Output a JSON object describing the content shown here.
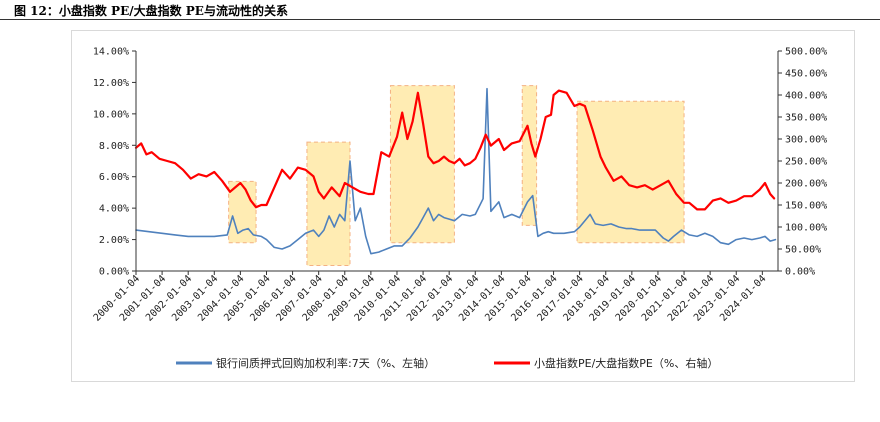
{
  "figure": {
    "title": "图 12：小盘指数 PE/大盘指数 PE与流动性的关系"
  },
  "chart_data": {
    "type": "line",
    "xlabel": "",
    "ylabel_left": "",
    "ylabel_right": "",
    "x_tick_labels": [
      "2000-01-04",
      "2001-01-04",
      "2002-01-04",
      "2003-01-04",
      "2004-01-04",
      "2005-01-04",
      "2006-01-04",
      "2007-01-04",
      "2008-01-04",
      "2009-01-04",
      "2010-01-04",
      "2011-01-04",
      "2012-01-04",
      "2013-01-04",
      "2014-01-04",
      "2015-01-04",
      "2016-01-04",
      "2017-01-04",
      "2018-01-04",
      "2019-01-04",
      "2020-01-04",
      "2021-01-04",
      "2022-01-04",
      "2023-01-04",
      "2024-01-04"
    ],
    "y_left": {
      "ylim": [
        0,
        14
      ],
      "tick_labels": [
        "0.00%",
        "2.00%",
        "4.00%",
        "6.00%",
        "8.00%",
        "10.00%",
        "12.00%",
        "14.00%"
      ]
    },
    "y_right": {
      "ylim": [
        0,
        500
      ],
      "tick_labels": [
        "0.00%",
        "50.00%",
        "100.00%",
        "150.00%",
        "200.00%",
        "250.00%",
        "300.00%",
        "350.00%",
        "400.00%",
        "450.00%",
        "500.00%"
      ]
    },
    "grid": false,
    "legend_position": "bottom",
    "colors": {
      "repo_rate": "#4f81bd",
      "pe_ratio": "#ff0000",
      "highlight_fill": "#ffe699",
      "highlight_border": "#f4b183"
    },
    "series": [
      {
        "name": "银行间质押式回购加权利率:7天（%、左轴）",
        "axis": "left",
        "x": [
          2000.0,
          2000.5,
          2001.0,
          2001.5,
          2002.0,
          2002.5,
          2003.0,
          2003.5,
          2003.7,
          2003.9,
          2004.1,
          2004.3,
          2004.5,
          2004.8,
          2005.0,
          2005.3,
          2005.6,
          2005.9,
          2006.2,
          2006.5,
          2006.8,
          2007.0,
          2007.2,
          2007.4,
          2007.6,
          2007.8,
          2008.0,
          2008.2,
          2008.4,
          2008.6,
          2008.8,
          2009.0,
          2009.3,
          2009.6,
          2009.9,
          2010.2,
          2010.5,
          2010.8,
          2011.0,
          2011.2,
          2011.4,
          2011.6,
          2011.8,
          2012.0,
          2012.2,
          2012.5,
          2012.8,
          2013.0,
          2013.3,
          2013.45,
          2013.6,
          2013.9,
          2014.1,
          2014.4,
          2014.7,
          2015.0,
          2015.2,
          2015.4,
          2015.6,
          2015.8,
          2016.0,
          2016.4,
          2016.8,
          2017.0,
          2017.2,
          2017.4,
          2017.6,
          2017.9,
          2018.2,
          2018.5,
          2018.8,
          2019.0,
          2019.3,
          2019.6,
          2019.9,
          2020.2,
          2020.4,
          2020.6,
          2020.9,
          2021.2,
          2021.5,
          2021.8,
          2022.1,
          2022.4,
          2022.7,
          2023.0,
          2023.3,
          2023.6,
          2023.9,
          2024.1,
          2024.3,
          2024.5
        ],
        "values": [
          2.6,
          2.5,
          2.4,
          2.3,
          2.2,
          2.2,
          2.2,
          2.3,
          3.5,
          2.4,
          2.6,
          2.7,
          2.3,
          2.2,
          2.0,
          1.5,
          1.4,
          1.6,
          2.0,
          2.4,
          2.6,
          2.2,
          2.6,
          3.5,
          2.8,
          3.6,
          3.2,
          7.0,
          3.2,
          4.0,
          2.2,
          1.1,
          1.2,
          1.4,
          1.6,
          1.6,
          2.1,
          2.8,
          3.4,
          4.0,
          3.2,
          3.6,
          3.4,
          3.3,
          3.2,
          3.6,
          3.5,
          3.6,
          4.6,
          11.6,
          3.8,
          4.4,
          3.4,
          3.6,
          3.4,
          4.4,
          4.8,
          2.2,
          2.4,
          2.5,
          2.4,
          2.4,
          2.5,
          2.8,
          3.2,
          3.6,
          3.0,
          2.9,
          3.0,
          2.8,
          2.7,
          2.7,
          2.6,
          2.6,
          2.6,
          2.1,
          1.9,
          2.2,
          2.6,
          2.3,
          2.2,
          2.4,
          2.2,
          1.8,
          1.7,
          2.0,
          2.1,
          2.0,
          2.1,
          2.2,
          1.9,
          2.0
        ]
      },
      {
        "name": "小盘指数PE/大盘指数PE（%、右轴）",
        "axis": "right",
        "x": [
          2000.0,
          2000.2,
          2000.4,
          2000.6,
          2000.9,
          2001.2,
          2001.5,
          2001.8,
          2002.1,
          2002.4,
          2002.7,
          2003.0,
          2003.3,
          2003.6,
          2003.8,
          2004.0,
          2004.2,
          2004.4,
          2004.6,
          2004.8,
          2005.0,
          2005.3,
          2005.6,
          2005.9,
          2006.2,
          2006.5,
          2006.8,
          2007.0,
          2007.2,
          2007.5,
          2007.8,
          2008.0,
          2008.3,
          2008.6,
          2008.9,
          2009.1,
          2009.4,
          2009.7,
          2010.0,
          2010.2,
          2010.4,
          2010.6,
          2010.8,
          2011.0,
          2011.2,
          2011.4,
          2011.6,
          2011.8,
          2012.0,
          2012.2,
          2012.4,
          2012.6,
          2012.8,
          2013.0,
          2013.2,
          2013.4,
          2013.6,
          2013.9,
          2014.1,
          2014.4,
          2014.7,
          2015.0,
          2015.15,
          2015.3,
          2015.5,
          2015.7,
          2015.9,
          2016.0,
          2016.2,
          2016.5,
          2016.8,
          2017.0,
          2017.2,
          2017.5,
          2017.8,
          2018.0,
          2018.3,
          2018.6,
          2018.9,
          2019.2,
          2019.5,
          2019.8,
          2020.1,
          2020.4,
          2020.7,
          2021.0,
          2021.2,
          2021.5,
          2021.8,
          2022.1,
          2022.4,
          2022.7,
          2023.0,
          2023.3,
          2023.6,
          2023.9,
          2024.1,
          2024.3,
          2024.45
        ],
        "values": [
          280,
          290,
          265,
          270,
          255,
          250,
          245,
          230,
          210,
          220,
          215,
          225,
          205,
          180,
          190,
          200,
          185,
          160,
          145,
          150,
          150,
          190,
          230,
          210,
          235,
          230,
          215,
          180,
          165,
          190,
          170,
          200,
          190,
          180,
          175,
          175,
          270,
          260,
          305,
          360,
          300,
          340,
          405,
          335,
          260,
          245,
          250,
          260,
          250,
          245,
          255,
          240,
          245,
          255,
          280,
          310,
          285,
          300,
          275,
          290,
          295,
          330,
          290,
          260,
          300,
          350,
          355,
          400,
          410,
          405,
          375,
          380,
          375,
          320,
          260,
          235,
          205,
          215,
          195,
          190,
          195,
          185,
          195,
          205,
          175,
          155,
          155,
          140,
          140,
          160,
          165,
          155,
          160,
          170,
          170,
          185,
          200,
          175,
          165
        ]
      }
    ],
    "highlight_regions": [
      {
        "x": [
          2003.55,
          2004.6
        ],
        "y_left": [
          1.8,
          5.7
        ]
      },
      {
        "x": [
          2006.55,
          2008.2
        ],
        "y_left": [
          0.35,
          8.2
        ]
      },
      {
        "x": [
          2009.75,
          2012.2
        ],
        "y_left": [
          1.8,
          11.8
        ]
      },
      {
        "x": [
          2014.8,
          2015.35
        ],
        "y_left": [
          2.9,
          11.8
        ]
      },
      {
        "x": [
          2016.9,
          2021.0
        ],
        "y_left": [
          1.8,
          10.8
        ]
      }
    ]
  }
}
